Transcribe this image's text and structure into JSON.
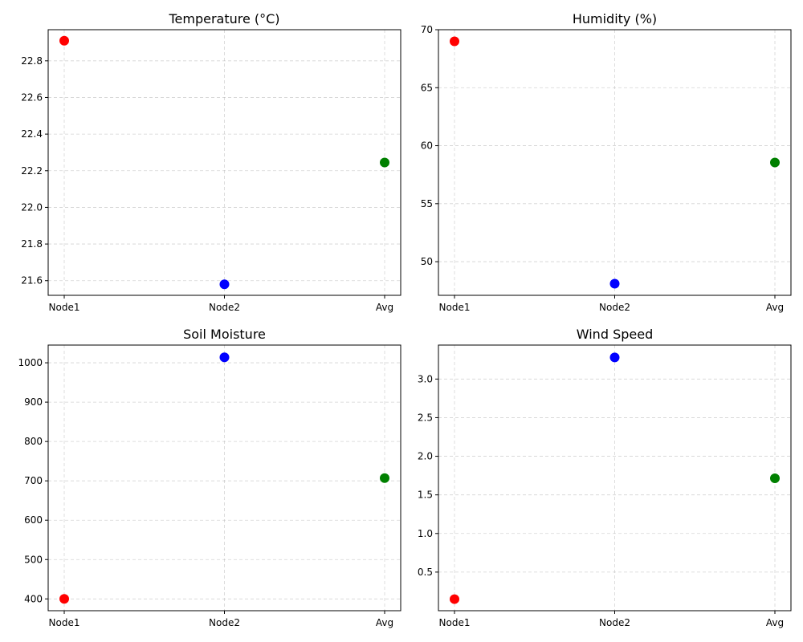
{
  "colors": {
    "Node1": "#ff0000",
    "Node2": "#0000ff",
    "Avg": "#008000"
  },
  "chart_data": [
    {
      "type": "scatter",
      "title": "Temperature (°C)",
      "categories": [
        "Node1",
        "Node2",
        "Avg"
      ],
      "values": [
        22.91,
        21.58,
        22.245
      ],
      "ylim": [
        21.52,
        22.97
      ],
      "yticks": [
        "21.6",
        "21.8",
        "22.0",
        "22.2",
        "22.4",
        "22.6",
        "22.8"
      ],
      "grid": true
    },
    {
      "type": "scatter",
      "title": "Humidity (%)",
      "categories": [
        "Node1",
        "Node2",
        "Avg"
      ],
      "values": [
        69.0,
        48.1,
        58.55
      ],
      "ylim": [
        47.1,
        70.0
      ],
      "yticks": [
        "50",
        "55",
        "60",
        "65",
        "70"
      ],
      "grid": true
    },
    {
      "type": "scatter",
      "title": "Soil Moisture",
      "categories": [
        "Node1",
        "Node2",
        "Avg"
      ],
      "values": [
        400,
        1014,
        707
      ],
      "ylim": [
        370,
        1045
      ],
      "yticks": [
        "400",
        "500",
        "600",
        "700",
        "800",
        "900",
        "1000"
      ],
      "grid": true
    },
    {
      "type": "scatter",
      "title": "Wind Speed",
      "categories": [
        "Node1",
        "Node2",
        "Avg"
      ],
      "values": [
        0.15,
        3.28,
        1.715
      ],
      "ylim": [
        0.0,
        3.44
      ],
      "yticks": [
        "0.5",
        "1.0",
        "1.5",
        "2.0",
        "2.5",
        "3.0"
      ],
      "grid": true
    }
  ]
}
